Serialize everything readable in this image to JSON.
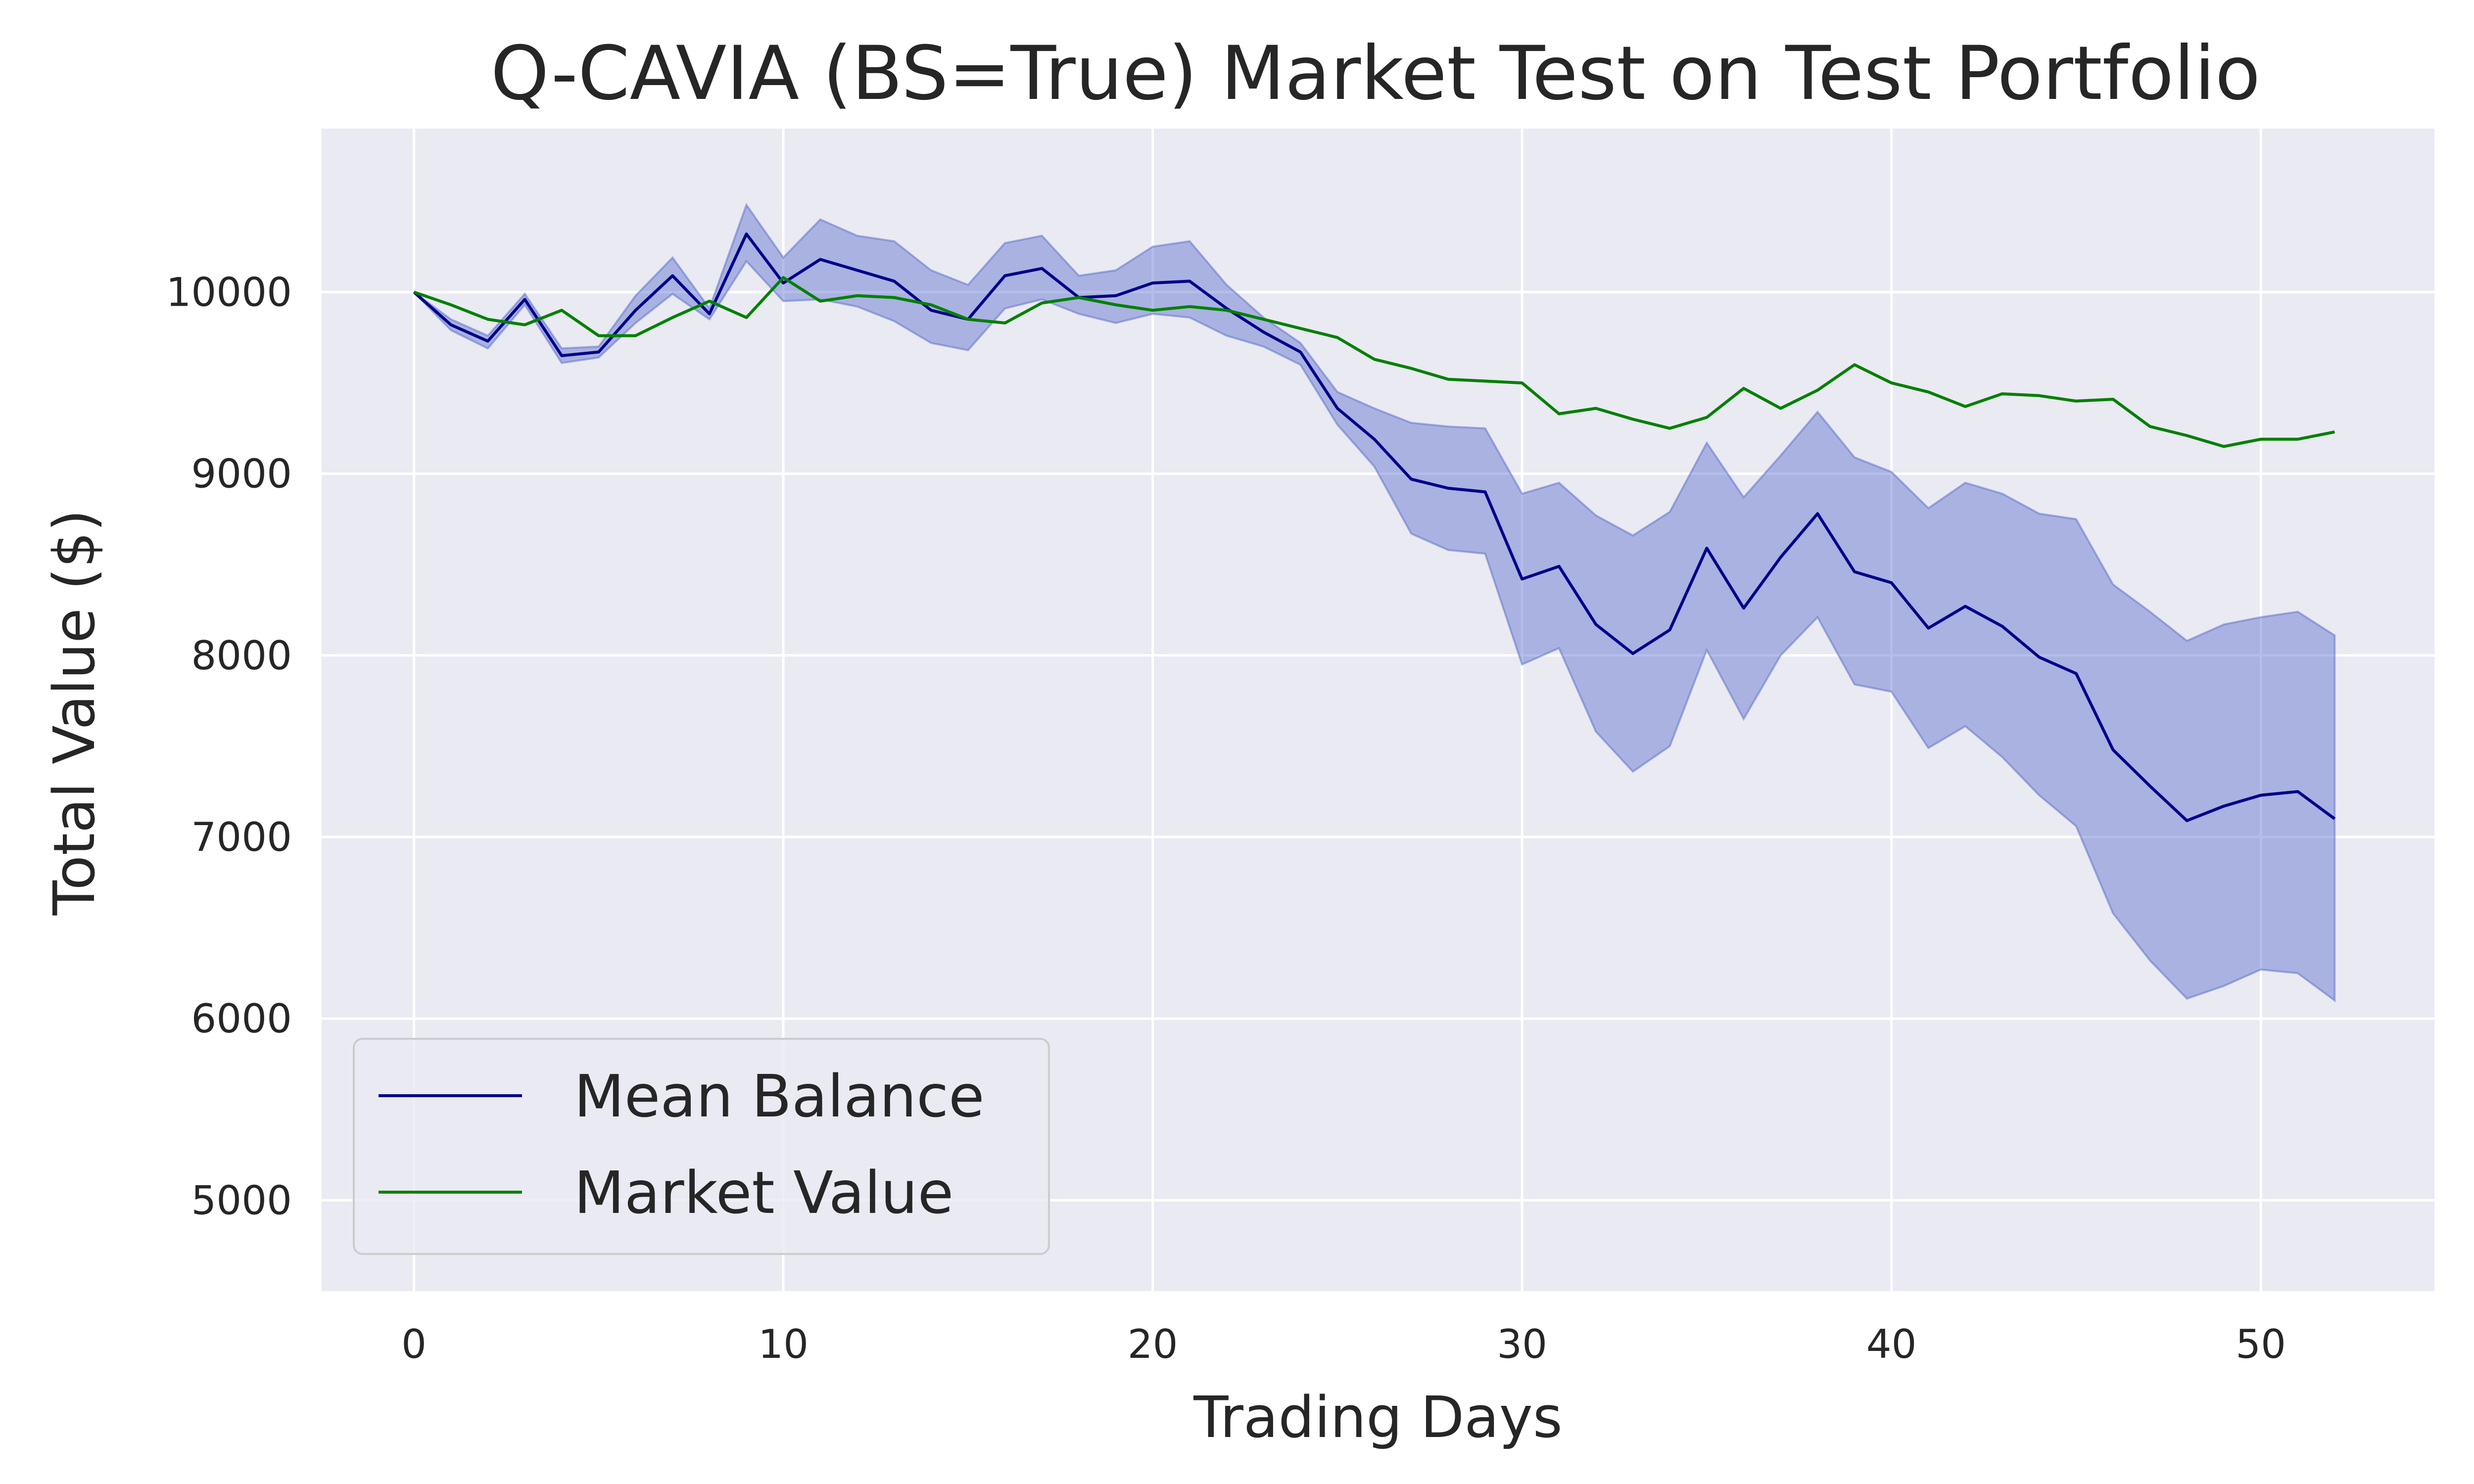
{
  "chart_data": {
    "type": "line",
    "title": "Q-CAVIA (BS=True) Market Test on Test Portfolio",
    "xlabel": "Trading Days",
    "ylabel": "Total Value ($)",
    "xlim": [
      -2.5,
      54.7
    ],
    "ylim": [
      4500,
      10900
    ],
    "xticks": [
      0,
      10,
      20,
      30,
      40,
      50
    ],
    "yticks": [
      5000,
      6000,
      7000,
      8000,
      9000,
      10000
    ],
    "grid": true,
    "legend_position": "lower-left",
    "colors": {
      "background": "#eaeaf2",
      "mean": "#00008b",
      "market": "#008000",
      "band": "#5a6ecb"
    },
    "x": [
      0,
      1,
      2,
      3,
      4,
      5,
      6,
      7,
      8,
      9,
      10,
      11,
      12,
      13,
      14,
      15,
      16,
      17,
      18,
      19,
      20,
      21,
      22,
      23,
      24,
      25,
      26,
      27,
      28,
      29,
      30,
      31,
      32,
      33,
      34,
      35,
      36,
      37,
      38,
      39,
      40,
      41,
      42,
      43,
      44,
      45,
      46,
      47,
      48,
      49,
      50,
      51,
      52
    ],
    "series": [
      {
        "name": "Mean Balance",
        "color": "#00008b",
        "values": [
          10000,
          9820,
          9730,
          9960,
          9650,
          9670,
          9900,
          10090,
          9880,
          10320,
          10050,
          10180,
          10120,
          10060,
          9900,
          9850,
          10090,
          10130,
          9970,
          9980,
          10050,
          10060,
          9910,
          9780,
          9670,
          9360,
          9190,
          8970,
          8920,
          8900,
          8420,
          8490,
          8170,
          8010,
          8140,
          8590,
          8260,
          8540,
          8780,
          8460,
          8400,
          8150,
          8270,
          8160,
          7990,
          7900,
          7480,
          7280,
          7090,
          7170,
          7230,
          7250,
          7100
        ]
      },
      {
        "name": "Market Value",
        "color": "#008000",
        "values": [
          10000,
          9930,
          9850,
          9820,
          9900,
          9760,
          9760,
          9860,
          9950,
          9860,
          10080,
          9950,
          9980,
          9970,
          9930,
          9850,
          9830,
          9940,
          9970,
          9930,
          9900,
          9920,
          9900,
          9850,
          9800,
          9750,
          9630,
          9580,
          9520,
          9510,
          9500,
          9330,
          9360,
          9300,
          9250,
          9310,
          9470,
          9360,
          9460,
          9600,
          9500,
          9450,
          9370,
          9440,
          9430,
          9400,
          9410,
          9260,
          9210,
          9150,
          9190,
          9190,
          9230
        ]
      }
    ],
    "band": {
      "upper": [
        10000,
        9850,
        9760,
        9990,
        9690,
        9700,
        9980,
        10190,
        9910,
        10480,
        10190,
        10400,
        10310,
        10280,
        10120,
        10040,
        10270,
        10310,
        10090,
        10120,
        10250,
        10280,
        10040,
        9860,
        9720,
        9450,
        9360,
        9280,
        9260,
        9250,
        8890,
        8950,
        8770,
        8660,
        8790,
        9170,
        8870,
        9100,
        9340,
        9090,
        9010,
        8810,
        8950,
        8890,
        8780,
        8750,
        8390,
        8240,
        8080,
        8170,
        8210,
        8240,
        8110
      ],
      "lower": [
        10000,
        9790,
        9690,
        9930,
        9610,
        9640,
        9830,
        9990,
        9850,
        10170,
        9950,
        9960,
        9920,
        9840,
        9720,
        9680,
        9910,
        9960,
        9880,
        9830,
        9880,
        9860,
        9760,
        9700,
        9600,
        9270,
        9040,
        8670,
        8580,
        8560,
        7950,
        8040,
        7580,
        7360,
        7500,
        8030,
        7650,
        8000,
        8210,
        7840,
        7800,
        7490,
        7610,
        7440,
        7230,
        7060,
        6580,
        6320,
        6110,
        6180,
        6270,
        6250,
        6100
      ]
    },
    "legend": [
      "Mean Balance",
      "Market Value"
    ]
  }
}
